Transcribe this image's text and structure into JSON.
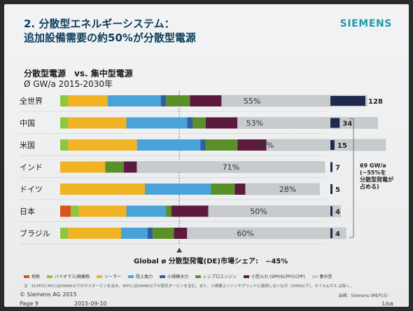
{
  "header": {
    "title_line1": "2. 分散型エネルギーシステム：",
    "title_line2": "追加設備需要の約50%が分散型電源",
    "logo": "SIEMENS"
  },
  "subtitle": {
    "line1": "分散型電源　vs. 集中型電源",
    "line2": "Ø GW/a 2015-2030年"
  },
  "chart_data": {
    "type": "bar",
    "title": "分散型電源　vs. 集中型電源",
    "categories": [
      "全世界",
      "中国",
      "米国",
      "インド",
      "ドイツ",
      "日本",
      "ブラジル"
    ],
    "segment_colors": [
      "#d9531e",
      "#8dc63f",
      "#f0b323",
      "#4aa3d8",
      "#2e5fa3",
      "#5a8f2a",
      "#5c1a3d",
      "#c8cbce"
    ],
    "segment_names": [
      "地熱",
      "バイオマス/廃棄物",
      "ソーラー",
      "陸上風力",
      "小規模水力",
      "レシプロエンジン",
      "小型火力 (SPP/SCPP/CCPP)",
      "集中型"
    ],
    "series_values": [
      [
        0,
        3,
        15,
        20,
        2,
        9,
        12,
        55
      ],
      [
        0,
        3,
        22,
        23,
        2,
        5,
        12,
        53
      ],
      [
        0,
        3,
        26,
        24,
        2,
        12,
        11,
        45
      ],
      [
        0,
        0,
        17,
        0,
        0,
        7,
        5,
        71
      ],
      [
        0,
        0,
        32,
        25,
        0,
        9,
        4,
        28
      ],
      [
        4,
        3,
        18,
        15,
        0,
        2,
        14,
        50
      ],
      [
        0,
        3,
        20,
        10,
        2,
        8,
        5,
        60
      ]
    ],
    "central_labels": [
      "55%",
      "53%",
      "45%",
      "71%",
      "28%",
      "50%",
      "60%"
    ],
    "totals": [
      128,
      34,
      15,
      7,
      5,
      4,
      4
    ],
    "total_labels": [
      "128",
      "34",
      "15",
      "7",
      "5",
      "4",
      "4"
    ],
    "global_de_share": 45,
    "global_label": "Global ø 分散型発電(DE)市場シェア:　~45%"
  },
  "annotation": {
    "line1": "69 GW/a",
    "line2": "(~55%を",
    "line3": "分散型発電が",
    "line4": "占める)"
  },
  "legend": [
    "地熱",
    "バイオマス/廃棄物",
    "ソーラー",
    "陸上風力",
    "小規模水力",
    "レシプロエンジン",
    "小型火力 (SPP/SCPP/CCPP)",
    "集中型"
  ],
  "footer": {
    "note": "注　SCPP/CCPPには50MW以下のガスタービンを含み、SPPには50MW以下の蒸気タービンを含む。また、小規模エンジンやグリッドに接続しないもの（1MW以下）、オイル&ガス は除く。",
    "source": "出典：Siemens (MEP15)",
    "copyright": "© Siemens AG 2015",
    "page": "Page 9",
    "date": "2015-09-10",
    "author": "Lisa Davis"
  }
}
